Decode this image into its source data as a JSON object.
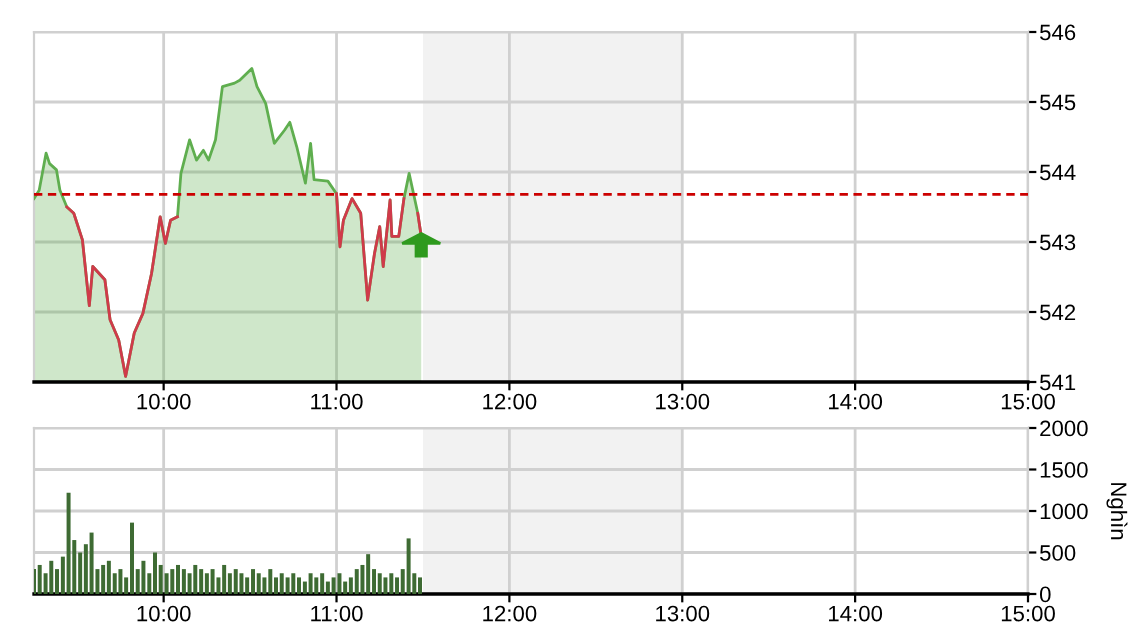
{
  "chart_data": [
    {
      "type": "area",
      "x": [
        9.25,
        9.28,
        9.32,
        9.34,
        9.38,
        9.4,
        9.44,
        9.48,
        9.53,
        9.57,
        9.59,
        9.66,
        9.69,
        9.74,
        9.78,
        9.83,
        9.88,
        9.93,
        9.98,
        10.01,
        10.04,
        10.08,
        10.1,
        10.15,
        10.19,
        10.23,
        10.26,
        10.3,
        10.34,
        10.41,
        10.44,
        10.51,
        10.54,
        10.59,
        10.64,
        10.7,
        10.73,
        10.77,
        10.82,
        10.85,
        10.87,
        10.95,
        11.0,
        11.02,
        11.04,
        11.09,
        11.14,
        11.18,
        11.22,
        11.25,
        11.27,
        11.31,
        11.32,
        11.36,
        11.39,
        11.42,
        11.47,
        11.49
      ],
      "series": [
        {
          "type": "area",
          "color": "#5fae4f",
          "values": [
            543.62,
            543.74,
            544.27,
            544.12,
            544.03,
            543.74,
            543.5,
            543.41,
            543.03,
            542.09,
            542.65,
            542.46,
            541.89,
            541.6,
            541.08,
            541.7,
            541.98,
            542.55,
            543.36,
            542.98,
            543.31,
            543.36,
            543.98,
            544.46,
            544.17,
            544.31,
            544.17,
            544.46,
            545.22,
            545.27,
            545.31,
            545.48,
            545.22,
            544.98,
            544.41,
            544.6,
            544.71,
            544.36,
            543.84,
            544.41,
            543.89,
            543.87,
            543.69,
            542.93,
            543.31,
            543.62,
            543.41,
            542.17,
            542.84,
            543.22,
            542.65,
            543.6,
            543.08,
            543.08,
            543.62,
            543.98,
            543.41,
            543.08
          ]
        },
        {
          "type": "line",
          "color": "#d03a4a",
          "values": [
            null,
            null,
            null,
            null,
            null,
            null,
            543.5,
            543.41,
            543.03,
            542.09,
            542.65,
            542.46,
            541.89,
            541.6,
            541.08,
            541.7,
            541.98,
            542.55,
            543.36,
            542.98,
            543.31,
            543.36,
            null,
            null,
            null,
            null,
            null,
            null,
            null,
            null,
            null,
            null,
            null,
            null,
            null,
            null,
            null,
            null,
            null,
            null,
            null,
            null,
            543.69,
            542.93,
            543.31,
            543.62,
            543.41,
            542.17,
            542.84,
            543.22,
            542.65,
            543.6,
            543.08,
            543.08,
            543.62,
            null,
            543.41,
            543.08
          ]
        }
      ],
      "xlim": [
        9.25,
        15
      ],
      "xticks": [
        {
          "value": 10,
          "label": "10:00"
        },
        {
          "value": 11,
          "label": "11:00"
        },
        {
          "value": 12,
          "label": "12:00"
        },
        {
          "value": 13,
          "label": "13:00"
        },
        {
          "value": 14,
          "label": "14:00"
        },
        {
          "value": 15,
          "label": "15:00"
        }
      ],
      "ylim": [
        541,
        546
      ],
      "yticks": [
        541,
        542,
        543,
        544,
        545,
        546
      ],
      "ref_lines": [
        {
          "axis": "y",
          "value": 543.68,
          "color": "#cc0000",
          "line_style": "dashed"
        }
      ],
      "bands": [
        {
          "axis": "x",
          "from": 11.5,
          "to": 13,
          "color": "#f2f2f2"
        }
      ],
      "grid": true
    },
    {
      "type": "bar",
      "x": [
        9.25,
        9.283,
        9.317,
        9.35,
        9.383,
        9.417,
        9.45,
        9.483,
        9.517,
        9.55,
        9.583,
        9.617,
        9.65,
        9.683,
        9.717,
        9.75,
        9.783,
        9.817,
        9.85,
        9.883,
        9.917,
        9.95,
        9.983,
        10.017,
        10.05,
        10.083,
        10.117,
        10.15,
        10.183,
        10.217,
        10.25,
        10.283,
        10.317,
        10.35,
        10.383,
        10.417,
        10.45,
        10.483,
        10.517,
        10.55,
        10.583,
        10.617,
        10.65,
        10.683,
        10.717,
        10.75,
        10.783,
        10.817,
        10.85,
        10.883,
        10.917,
        10.95,
        10.983,
        11.017,
        11.05,
        11.083,
        11.117,
        11.15,
        11.183,
        11.217,
        11.25,
        11.283,
        11.317,
        11.35,
        11.383,
        11.417,
        11.45,
        11.483
      ],
      "values": [
        300,
        350,
        250,
        400,
        300,
        450,
        1220,
        650,
        500,
        600,
        740,
        300,
        350,
        400,
        250,
        300,
        200,
        860,
        300,
        400,
        250,
        500,
        350,
        250,
        300,
        350,
        300,
        250,
        350,
        300,
        250,
        300,
        200,
        350,
        250,
        300,
        250,
        200,
        300,
        250,
        200,
        300,
        200,
        250,
        200,
        250,
        200,
        150,
        250,
        200,
        250,
        150,
        200,
        250,
        150,
        200,
        300,
        350,
        480,
        300,
        250,
        200,
        250,
        200,
        300,
        670,
        250,
        200
      ],
      "color": "#3e6b33",
      "ylabel": "Nghìn",
      "xlim": [
        9.25,
        15
      ],
      "xticks": [
        {
          "value": 10,
          "label": "10:00"
        },
        {
          "value": 11,
          "label": "11:00"
        },
        {
          "value": 12,
          "label": "12:00"
        },
        {
          "value": 13,
          "label": "13:00"
        },
        {
          "value": 14,
          "label": "14:00"
        },
        {
          "value": 15,
          "label": "15:00"
        }
      ],
      "ylim": [
        0,
        2000
      ],
      "yticks": [
        0,
        500,
        1000,
        1500,
        2000
      ],
      "bands": [
        {
          "axis": "x",
          "from": 11.5,
          "to": 13,
          "color": "#f2f2f2"
        }
      ],
      "grid": true
    }
  ]
}
